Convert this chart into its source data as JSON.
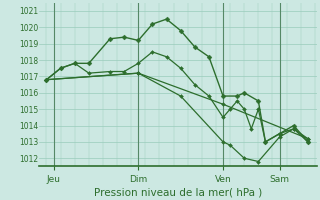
{
  "xlabel": "Pression niveau de la mer( hPa )",
  "bg_color": "#cce8e2",
  "grid_color": "#99ccbb",
  "line_color": "#2d6e2d",
  "ylim": [
    1011.5,
    1021.5
  ],
  "yticks": [
    1012,
    1013,
    1014,
    1015,
    1016,
    1017,
    1018,
    1019,
    1020,
    1021
  ],
  "xlim": [
    -3,
    115
  ],
  "day_labels": [
    "Jeu",
    "Dim",
    "Ven",
    "Sam"
  ],
  "day_positions": [
    3,
    39,
    75,
    99
  ],
  "vline_positions": [
    3,
    39,
    75,
    99
  ],
  "lines": [
    {
      "x": [
        0,
        6,
        12,
        18,
        27,
        33,
        39,
        45,
        51,
        57,
        63,
        69,
        75,
        81,
        84,
        90,
        93,
        99,
        105,
        111
      ],
      "y": [
        1016.8,
        1017.5,
        1017.8,
        1017.8,
        1019.3,
        1019.4,
        1019.2,
        1020.2,
        1020.5,
        1019.8,
        1018.8,
        1018.2,
        1015.8,
        1015.8,
        1016.0,
        1015.5,
        1013.0,
        1013.5,
        1014.0,
        1013.0
      ],
      "marker": "D",
      "markersize": 2.5,
      "lw": 1.0
    },
    {
      "x": [
        0,
        6,
        12,
        18,
        27,
        33,
        39,
        45,
        51,
        57,
        63,
        69,
        75,
        78,
        81,
        84,
        87,
        90,
        93,
        99,
        105,
        111
      ],
      "y": [
        1016.8,
        1017.5,
        1017.8,
        1017.2,
        1017.3,
        1017.3,
        1017.8,
        1018.5,
        1018.2,
        1017.5,
        1016.5,
        1015.8,
        1014.5,
        1015.0,
        1015.5,
        1015.0,
        1013.8,
        1015.0,
        1013.0,
        1013.5,
        1013.8,
        1013.2
      ],
      "marker": "D",
      "markersize": 2.0,
      "lw": 0.9
    },
    {
      "x": [
        0,
        39,
        75,
        111
      ],
      "y": [
        1016.8,
        1017.2,
        1015.3,
        1013.2
      ],
      "marker": "D",
      "markersize": 2.0,
      "lw": 0.9
    },
    {
      "x": [
        0,
        39,
        57,
        75,
        78,
        84,
        90,
        99,
        105,
        111
      ],
      "y": [
        1016.8,
        1017.2,
        1015.8,
        1013.0,
        1012.8,
        1012.0,
        1011.8,
        1013.3,
        1013.8,
        1013.0
      ],
      "marker": "D",
      "markersize": 2.0,
      "lw": 0.9
    }
  ]
}
